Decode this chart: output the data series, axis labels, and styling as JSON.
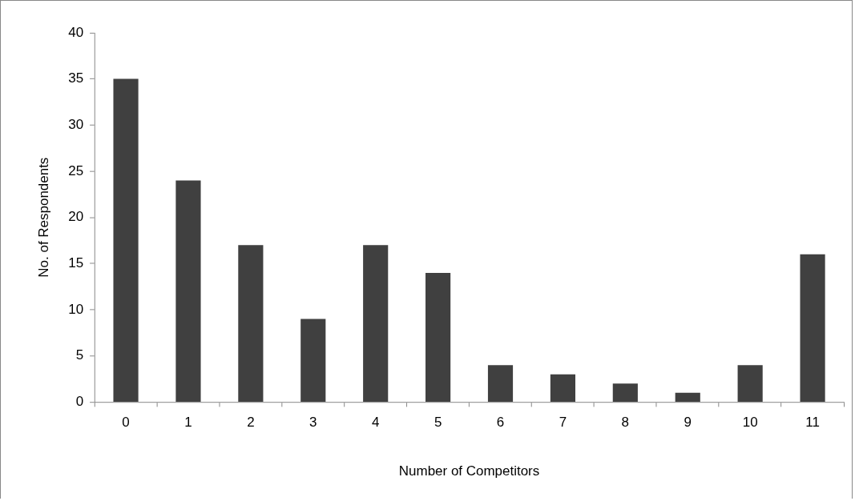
{
  "chart_data": {
    "type": "bar",
    "xlabel": "Number of Competitors",
    "ylabel": "No. of Respondents",
    "categories": [
      "0",
      "1",
      "2",
      "3",
      "4",
      "5",
      "6",
      "7",
      "8",
      "9",
      "10",
      "11"
    ],
    "values": [
      35,
      24,
      17,
      9,
      17,
      14,
      4,
      3,
      2,
      1,
      4,
      16
    ],
    "color": "#404040",
    "ylim": [
      0,
      40
    ],
    "yticks": [
      0,
      5,
      10,
      15,
      20,
      25,
      30,
      35,
      40
    ],
    "grid": false,
    "legend": false
  }
}
